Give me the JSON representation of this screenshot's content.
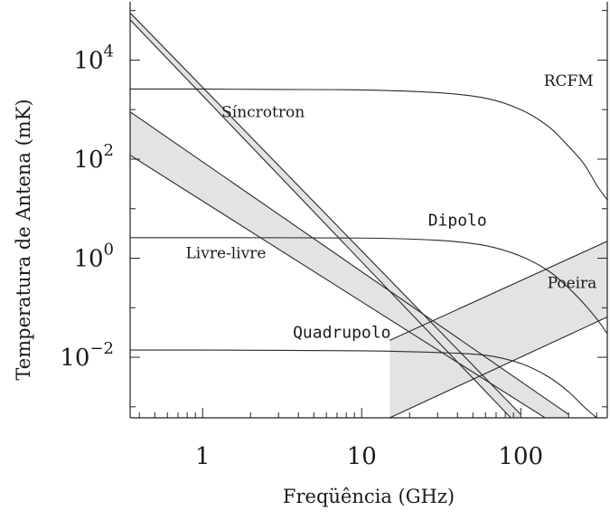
{
  "chart_data": {
    "type": "line",
    "xlabel": "Freqüência (GHz)",
    "ylabel": "Temperatura de Antena  (mK)",
    "xscale": "log",
    "yscale": "log",
    "xlim": [
      0.35,
      350
    ],
    "ylim": [
      0.0006,
      150000
    ],
    "x_ticks": [
      {
        "value": 1,
        "label": "1"
      },
      {
        "value": 10,
        "label": "10"
      },
      {
        "value": 100,
        "label": "100"
      }
    ],
    "y_ticks": [
      {
        "value": 10000,
        "base": "10",
        "exp": "4"
      },
      {
        "value": 100,
        "base": "10",
        "exp": "2"
      },
      {
        "value": 1,
        "base": "10",
        "exp": "0"
      },
      {
        "value": 0.01,
        "base": "10",
        "exp": "−2"
      }
    ],
    "grid": false,
    "series": [
      {
        "name": "RCFM",
        "kind": "line",
        "x": [
          0.35,
          1,
          3,
          10,
          30,
          60,
          100,
          150,
          200,
          250,
          300,
          350
        ],
        "y": [
          2600,
          2600,
          2550,
          2500,
          2200,
          1700,
          1000,
          450,
          180,
          80,
          30,
          15
        ]
      },
      {
        "name": "Dipolo",
        "kind": "line",
        "x": [
          0.35,
          1,
          10,
          30,
          60,
          100,
          150,
          200,
          250,
          300,
          350
        ],
        "y": [
          2.6,
          2.6,
          2.55,
          2.3,
          1.8,
          1.1,
          0.55,
          0.25,
          0.12,
          0.06,
          0.03
        ]
      },
      {
        "name": "Quadrupolo",
        "kind": "line",
        "x": [
          0.35,
          1,
          10,
          30,
          60,
          100,
          150,
          200,
          250,
          300
        ],
        "y": [
          0.014,
          0.014,
          0.0135,
          0.0125,
          0.011,
          0.0075,
          0.004,
          0.002,
          0.001,
          0.0006
        ]
      },
      {
        "name": "Síncrotron",
        "kind": "band",
        "x": [
          0.35,
          100
        ],
        "y_low": [
          65000,
          0.00037
        ],
        "y_high": [
          90000,
          0.0007
        ]
      },
      {
        "name": "Livre-livre",
        "kind": "band",
        "x": [
          0.35,
          200
        ],
        "y_low": [
          120,
          0.0003
        ],
        "y_high": [
          900,
          0.0007
        ]
      },
      {
        "name": "Poeira",
        "kind": "band",
        "x": [
          15,
          350
        ],
        "y_low": [
          0.0006,
          0.065
        ],
        "y_high": [
          0.022,
          2.2
        ]
      }
    ],
    "annotations": [
      {
        "text": "RCFM",
        "x": 200,
        "y": 3000
      },
      {
        "text": "Síncrotron",
        "x": 2.4,
        "y": 700
      },
      {
        "text": "Dipolo",
        "x": 40,
        "y": 4.5
      },
      {
        "text": "Livre-livre",
        "x": 1.4,
        "y": 1.0
      },
      {
        "text": "Poeira",
        "x": 210,
        "y": 0.25
      },
      {
        "text": "Quadrupolo",
        "x": 7.5,
        "y": 0.025
      }
    ]
  }
}
